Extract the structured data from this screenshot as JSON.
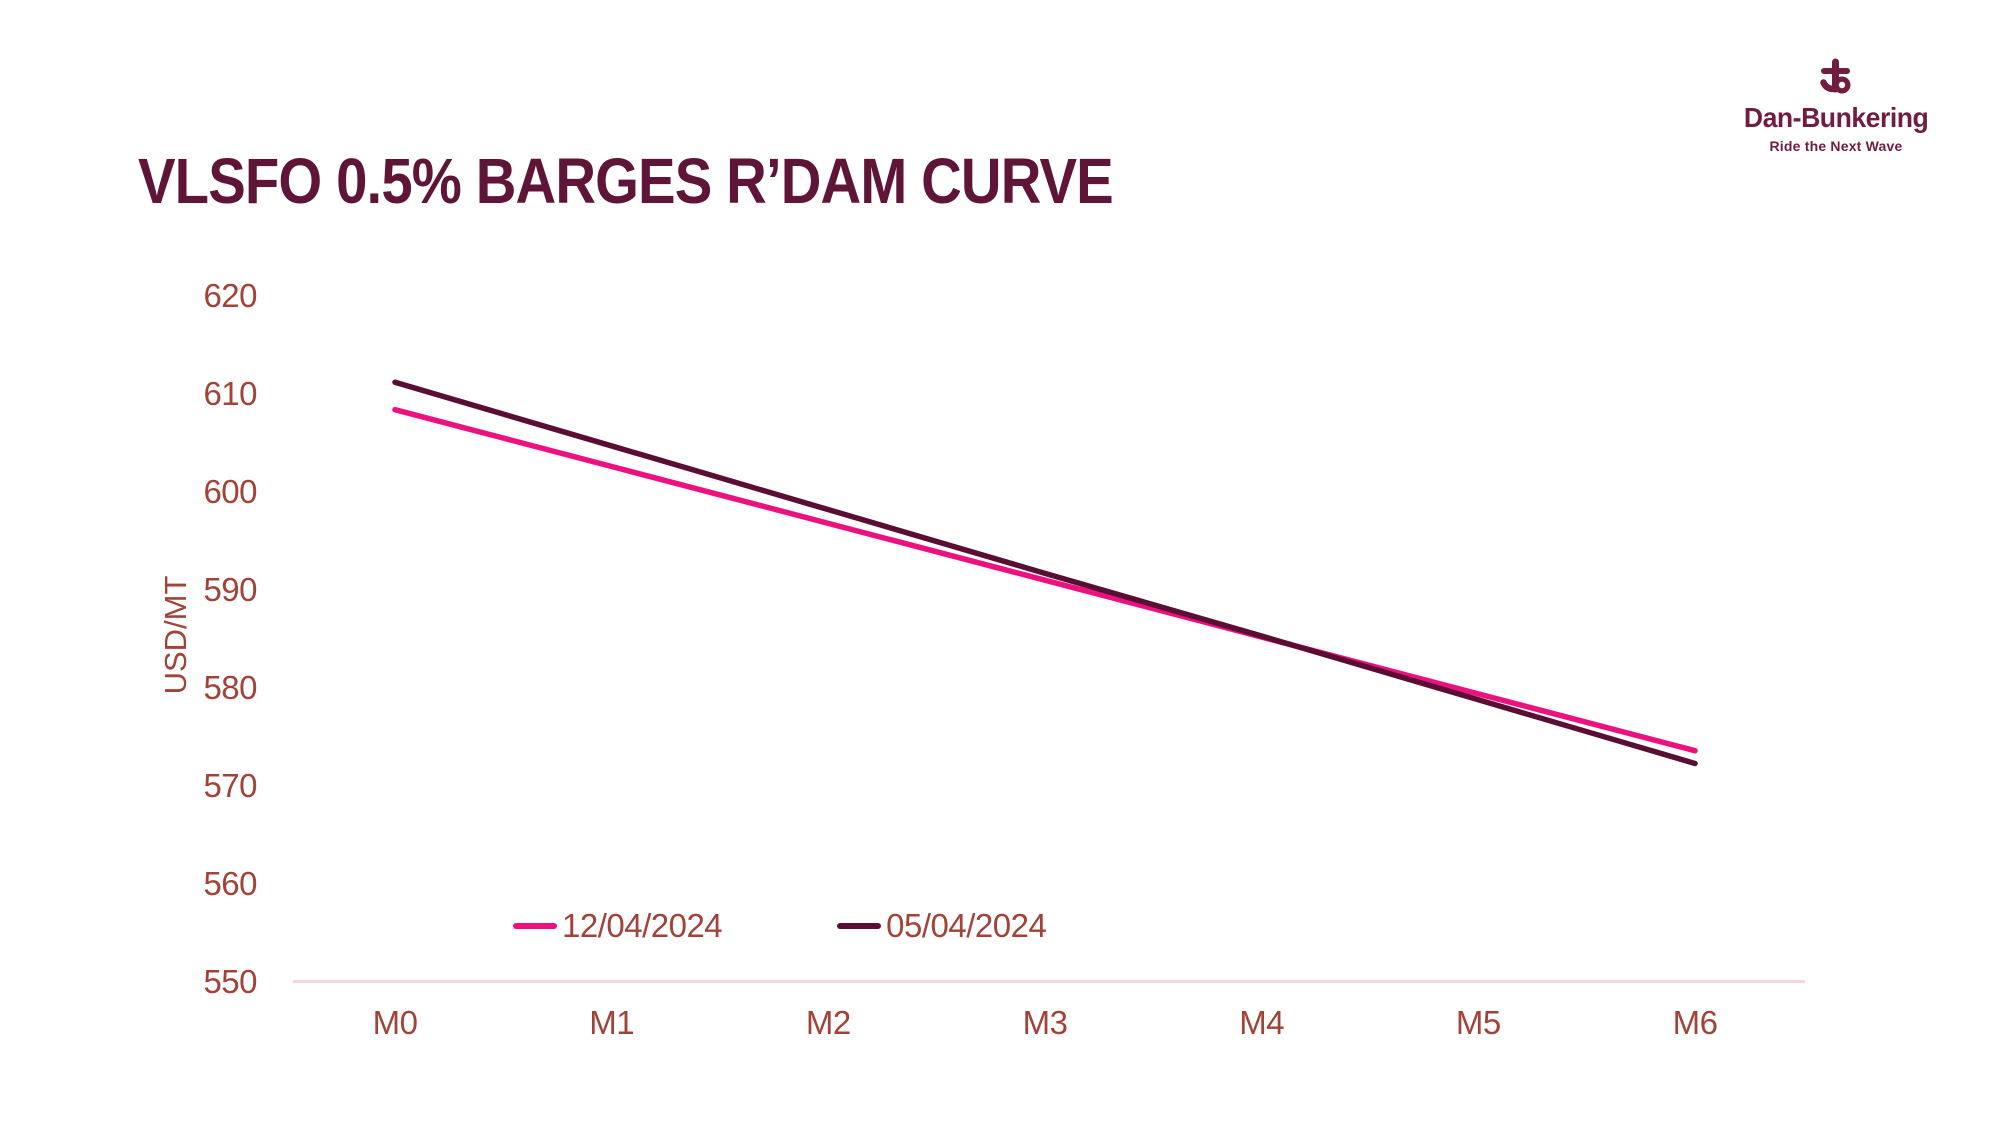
{
  "page": {
    "background": "#ffffff"
  },
  "header": {
    "title": "VLSFO 0.5% BARGES R’DAM CURVE"
  },
  "logo": {
    "name": "Dan-Bunkering",
    "tagline": "Ride the Next Wave",
    "icon": "anchor-b-icon"
  },
  "colors": {
    "title": "#5F1537",
    "axis_text": "#A14338",
    "brand": "#701D40",
    "baseline": "#F7D4E2",
    "series_pink": "#EC117F",
    "series_dark": "#5B0E33"
  },
  "chart_data": {
    "type": "line",
    "title": "VLSFO 0.5% BARGES R’DAM CURVE",
    "categories": [
      "M0",
      "M1",
      "M2",
      "M3",
      "M4",
      "M5",
      "M6"
    ],
    "series": [
      {
        "name": "12/04/2024",
        "color": "#EC117F",
        "values": [
          608.4,
          602.6,
          596.8,
          591.0,
          585.2,
          579.4,
          573.6
        ]
      },
      {
        "name": "05/04/2024",
        "color": "#5B0E33",
        "values": [
          611.2,
          604.7,
          598.2,
          591.7,
          585.3,
          578.8,
          572.3
        ]
      }
    ],
    "xlabel": "",
    "ylabel": "USD/MT",
    "ylim": [
      550,
      620
    ],
    "yticks": [
      550,
      560,
      570,
      580,
      590,
      600,
      610,
      620
    ],
    "grid": false,
    "legend_position": "bottom-left"
  }
}
